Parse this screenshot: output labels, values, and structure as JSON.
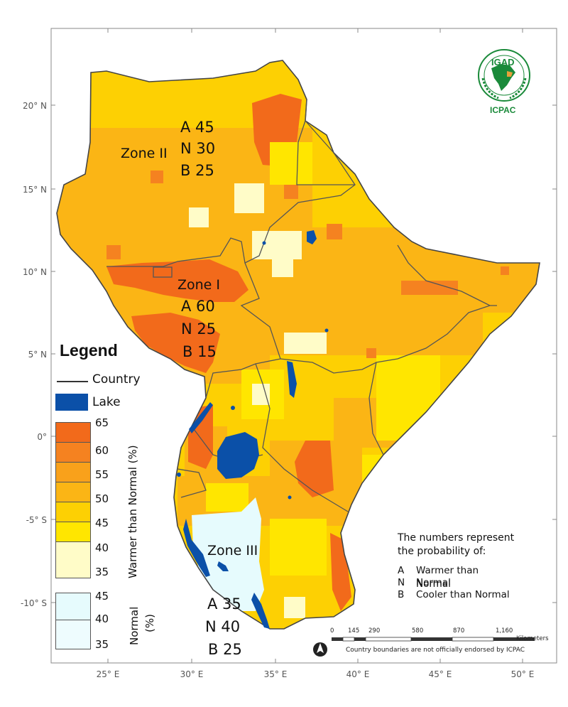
{
  "axes": {
    "lat_labels": [
      "20° N",
      "15° N",
      "10° N",
      "5° N",
      "0°",
      "-5° S",
      "-10° S"
    ],
    "lon_labels": [
      "25° E",
      "30° E",
      "35° E",
      "40° E",
      "45° E",
      "50° E"
    ]
  },
  "zones": [
    {
      "name": "Zone II",
      "A": "A 45",
      "N": "N 30",
      "B": "B 25"
    },
    {
      "name": "Zone I",
      "A": "A 60",
      "N": "N 25",
      "B": "B 15"
    },
    {
      "name": "Zone III",
      "A": "A 35",
      "N": "N 40",
      "B": "B 25"
    }
  ],
  "legend": {
    "title": "Legend",
    "country": "Country",
    "lake": "Lake",
    "warmer_title": "Warmer than Normal (%)",
    "normal_title_1": "Normal",
    "normal_title_2": "(%)",
    "warmer_scale": [
      "65",
      "60",
      "55",
      "50",
      "45",
      "40",
      "35"
    ],
    "normal_scale": [
      "45",
      "40",
      "35"
    ]
  },
  "note": {
    "line1": "The numbers represent",
    "line2": "the probability of:",
    "rows": [
      {
        "key": "A",
        "text": "Warmer than Normal"
      },
      {
        "key": "N",
        "text": "Normal"
      },
      {
        "key": "B",
        "text": "Cooler than Normal"
      }
    ]
  },
  "scale_bar": {
    "ticks": [
      "0",
      "145",
      "290",
      "580",
      "870",
      "1,160"
    ],
    "unit": "Kilometers"
  },
  "disclaimer": "Country boundaries are not officially endorsed by ICPAC",
  "logo": {
    "name": "IGAD",
    "sub": "ICPAC"
  },
  "colors": {
    "c65": "#f26a1b",
    "c60": "#f58220",
    "c55": "#f9a11b",
    "c50": "#fbb515",
    "c45": "#fdd003",
    "c40": "#ffe600",
    "c35": "#fffcc8",
    "lake": "#0b50a8",
    "normal": "#e6fbfd"
  }
}
